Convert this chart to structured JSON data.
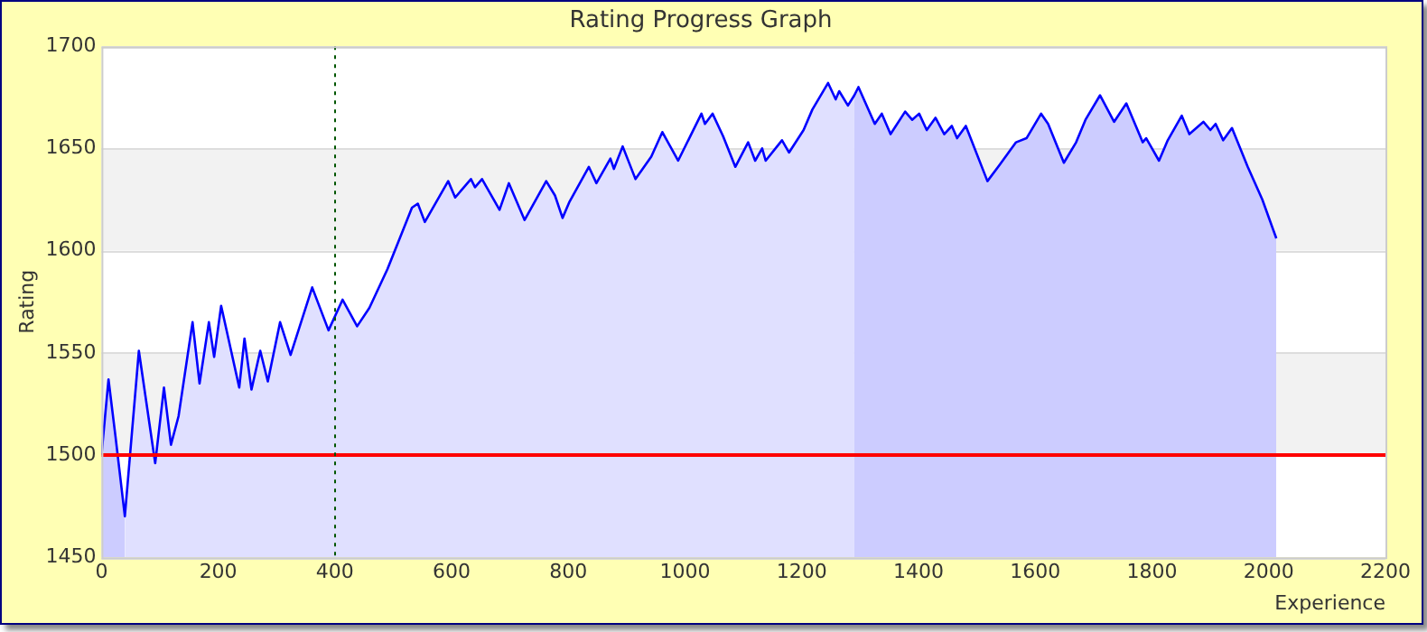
{
  "chart_data": {
    "type": "line",
    "title": "Rating Progress Graph",
    "xlabel": "Experience",
    "ylabel": "Rating",
    "xlim": [
      0,
      2200
    ],
    "xticks": [
      0,
      200,
      400,
      600,
      800,
      1000,
      1200,
      1400,
      1600,
      1800,
      2000,
      2200
    ],
    "ylim": [
      1450,
      1700
    ],
    "yticks": [
      1450,
      1500,
      1550,
      1600,
      1650,
      1700
    ],
    "grid": "y",
    "legend": false,
    "series": [
      {
        "type": "area",
        "color": "#ccccff",
        "x": [
          0,
          12,
          24,
          40
        ],
        "values": [
          1500,
          1537,
          1509,
          1470
        ]
      },
      {
        "type": "area",
        "color": "#e0e0ff",
        "x": [
          40,
          64,
          92,
          107,
          119,
          132,
          156,
          168,
          184,
          193,
          205,
          236,
          245,
          257,
          272,
          285,
          306,
          324,
          361,
          389,
          413,
          438,
          459,
          490,
          532,
          542,
          554,
          594,
          606,
          633,
          640,
          652,
          682,
          698,
          725,
          762,
          777,
          790,
          802,
          835,
          848,
          872,
          878,
          893,
          915,
          942,
          961,
          988,
          1028,
          1034,
          1047,
          1065,
          1086,
          1108,
          1120,
          1132,
          1138,
          1166,
          1178,
          1203,
          1218,
          1245,
          1258,
          1264,
          1279,
          1290
        ],
        "values": [
          1470,
          1551,
          1496,
          1533,
          1505,
          1519,
          1565,
          1535,
          1565,
          1548,
          1573,
          1533,
          1557,
          1532,
          1551,
          1536,
          1565,
          1549,
          1582,
          1561,
          1576,
          1563,
          1572,
          1591,
          1621,
          1623,
          1614,
          1634,
          1626,
          1635,
          1631,
          1635,
          1620,
          1633,
          1615,
          1634,
          1627,
          1616,
          1624,
          1641,
          1633,
          1645,
          1640,
          1651,
          1635,
          1646,
          1658,
          1644,
          1667,
          1662,
          1667,
          1656,
          1641,
          1653,
          1644,
          1650,
          1644,
          1654,
          1648,
          1659,
          1669,
          1682,
          1674,
          1678,
          1671,
          1676
        ]
      },
      {
        "type": "area",
        "color": "#ccccff",
        "x": [
          1290,
          1297,
          1325,
          1337,
          1352,
          1377,
          1389,
          1401,
          1414,
          1429,
          1444,
          1457,
          1466,
          1481,
          1518,
          1539,
          1567,
          1585,
          1610,
          1622,
          1649,
          1670,
          1686,
          1711,
          1735,
          1756,
          1784,
          1790,
          1812,
          1827,
          1851,
          1864,
          1888,
          1900,
          1909,
          1922,
          1937,
          1964,
          1989,
          2013
        ],
        "values": [
          1676,
          1680,
          1662,
          1667,
          1657,
          1668,
          1664,
          1667,
          1659,
          1665,
          1657,
          1661,
          1655,
          1661,
          1634,
          1642,
          1653,
          1655,
          1667,
          1662,
          1643,
          1653,
          1664,
          1676,
          1663,
          1672,
          1653,
          1655,
          1644,
          1654,
          1666,
          1657,
          1663,
          1659,
          1662,
          1654,
          1660,
          1641,
          1625,
          1606
        ]
      },
      {
        "type": "line",
        "color": "#0000ff",
        "x": [
          0,
          12,
          24,
          40,
          64,
          92,
          107,
          119,
          132,
          156,
          168,
          184,
          193,
          205,
          236,
          245,
          257,
          272,
          285,
          306,
          324,
          361,
          389,
          413,
          438,
          459,
          490,
          532,
          542,
          554,
          594,
          606,
          633,
          640,
          652,
          682,
          698,
          725,
          762,
          777,
          790,
          802,
          835,
          848,
          872,
          878,
          893,
          915,
          942,
          961,
          988,
          1028,
          1034,
          1047,
          1065,
          1086,
          1108,
          1120,
          1132,
          1138,
          1166,
          1178,
          1203,
          1218,
          1245,
          1258,
          1264,
          1279,
          1290,
          1297,
          1325,
          1337,
          1352,
          1377,
          1389,
          1401,
          1414,
          1429,
          1444,
          1457,
          1466,
          1481,
          1518,
          1539,
          1567,
          1585,
          1610,
          1622,
          1649,
          1670,
          1686,
          1711,
          1735,
          1756,
          1784,
          1790,
          1812,
          1827,
          1851,
          1864,
          1888,
          1900,
          1909,
          1922,
          1937,
          1964,
          1989,
          2013
        ],
        "values": [
          1500,
          1537,
          1509,
          1470,
          1551,
          1496,
          1533,
          1505,
          1519,
          1565,
          1535,
          1565,
          1548,
          1573,
          1533,
          1557,
          1532,
          1551,
          1536,
          1565,
          1549,
          1582,
          1561,
          1576,
          1563,
          1572,
          1591,
          1621,
          1623,
          1614,
          1634,
          1626,
          1635,
          1631,
          1635,
          1620,
          1633,
          1615,
          1634,
          1627,
          1616,
          1624,
          1641,
          1633,
          1645,
          1640,
          1651,
          1635,
          1646,
          1658,
          1644,
          1667,
          1662,
          1667,
          1656,
          1641,
          1653,
          1644,
          1650,
          1644,
          1654,
          1648,
          1659,
          1669,
          1682,
          1674,
          1678,
          1671,
          1676,
          1680,
          1662,
          1667,
          1657,
          1668,
          1664,
          1667,
          1659,
          1665,
          1657,
          1661,
          1655,
          1661,
          1634,
          1642,
          1653,
          1655,
          1667,
          1662,
          1643,
          1653,
          1664,
          1676,
          1663,
          1672,
          1653,
          1655,
          1644,
          1654,
          1666,
          1657,
          1663,
          1659,
          1662,
          1654,
          1660,
          1641,
          1625,
          1606
        ]
      }
    ],
    "ref_lines": [
      {
        "axis": "y",
        "value": 1500,
        "color": "#ff0000",
        "line_style": "solid"
      },
      {
        "axis": "x",
        "value": 400,
        "color": "#005500",
        "line_style": "dotted"
      }
    ]
  }
}
